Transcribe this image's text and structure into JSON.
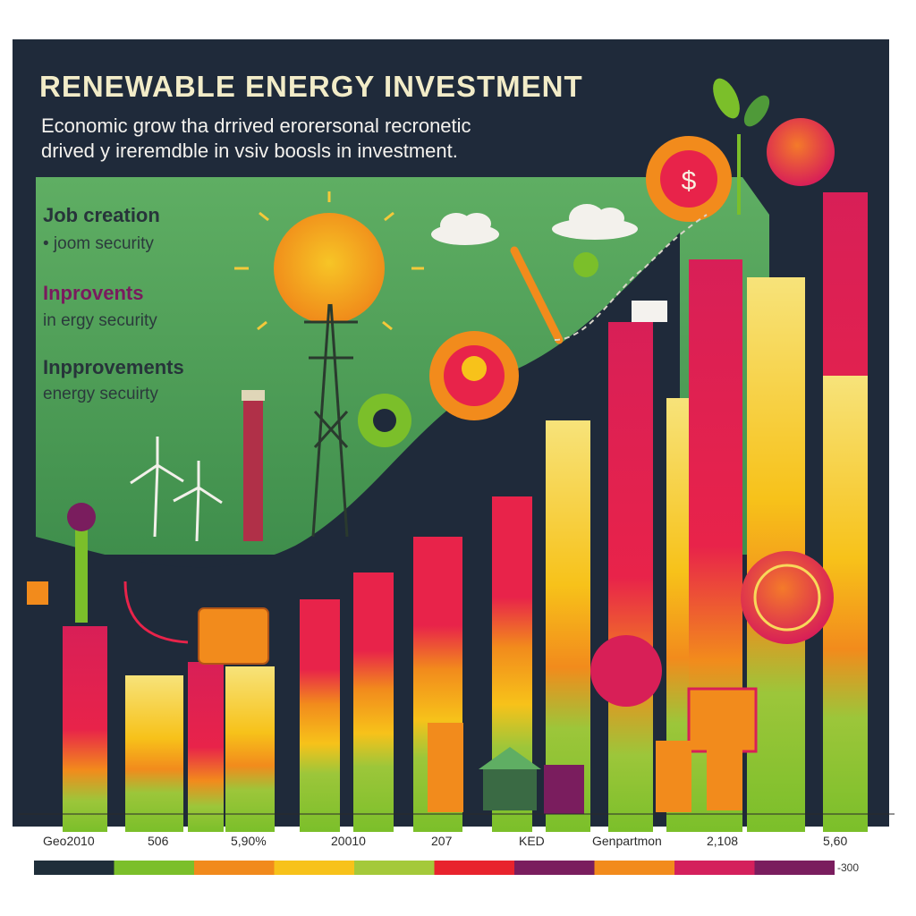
{
  "header": {
    "title": "RENEWABLE ENERGY   INVESTMENT",
    "subtitle_line1": "Economic grow tha drrived erorersonal recronetic",
    "subtitle_line2": "drived y ireremdble in  vsiv boosls in investment."
  },
  "side_panel": {
    "items": [
      {
        "heading": "Job creation",
        "subtext": "• joom security",
        "heading_color": "#27343a"
      },
      {
        "heading": "Inprovents",
        "subtext": "in ergy security",
        "heading_color": "#7a1a5e"
      },
      {
        "heading": "Inpprovements",
        "subtext": "energy secuirty",
        "heading_color": "#27343a"
      }
    ]
  },
  "bottom_labels": [
    "Geo2010",
    "506",
    "5,90%",
    "20010",
    "207",
    "KED",
    "Genpartmon",
    "2,108",
    "5,60"
  ],
  "scale_bar": {
    "end_label": "-300",
    "colors": [
      "#1f2e3a",
      "#7bbf2a",
      "#f18a1c",
      "#f7c21a",
      "#a4c93a",
      "#e8232d",
      "#7a1d5e",
      "#f28b1c",
      "#d4205c",
      "#7a1d5e"
    ]
  },
  "colors": {
    "background_dark": "#1f2a3a",
    "green_panel": "#5dab5f",
    "bar_red": "#e02e49",
    "bar_orange": "#f28b1c",
    "bar_yellow": "#f7d32e",
    "bar_green": "#8ec43f",
    "accent_purple": "#7a1d5e"
  }
}
